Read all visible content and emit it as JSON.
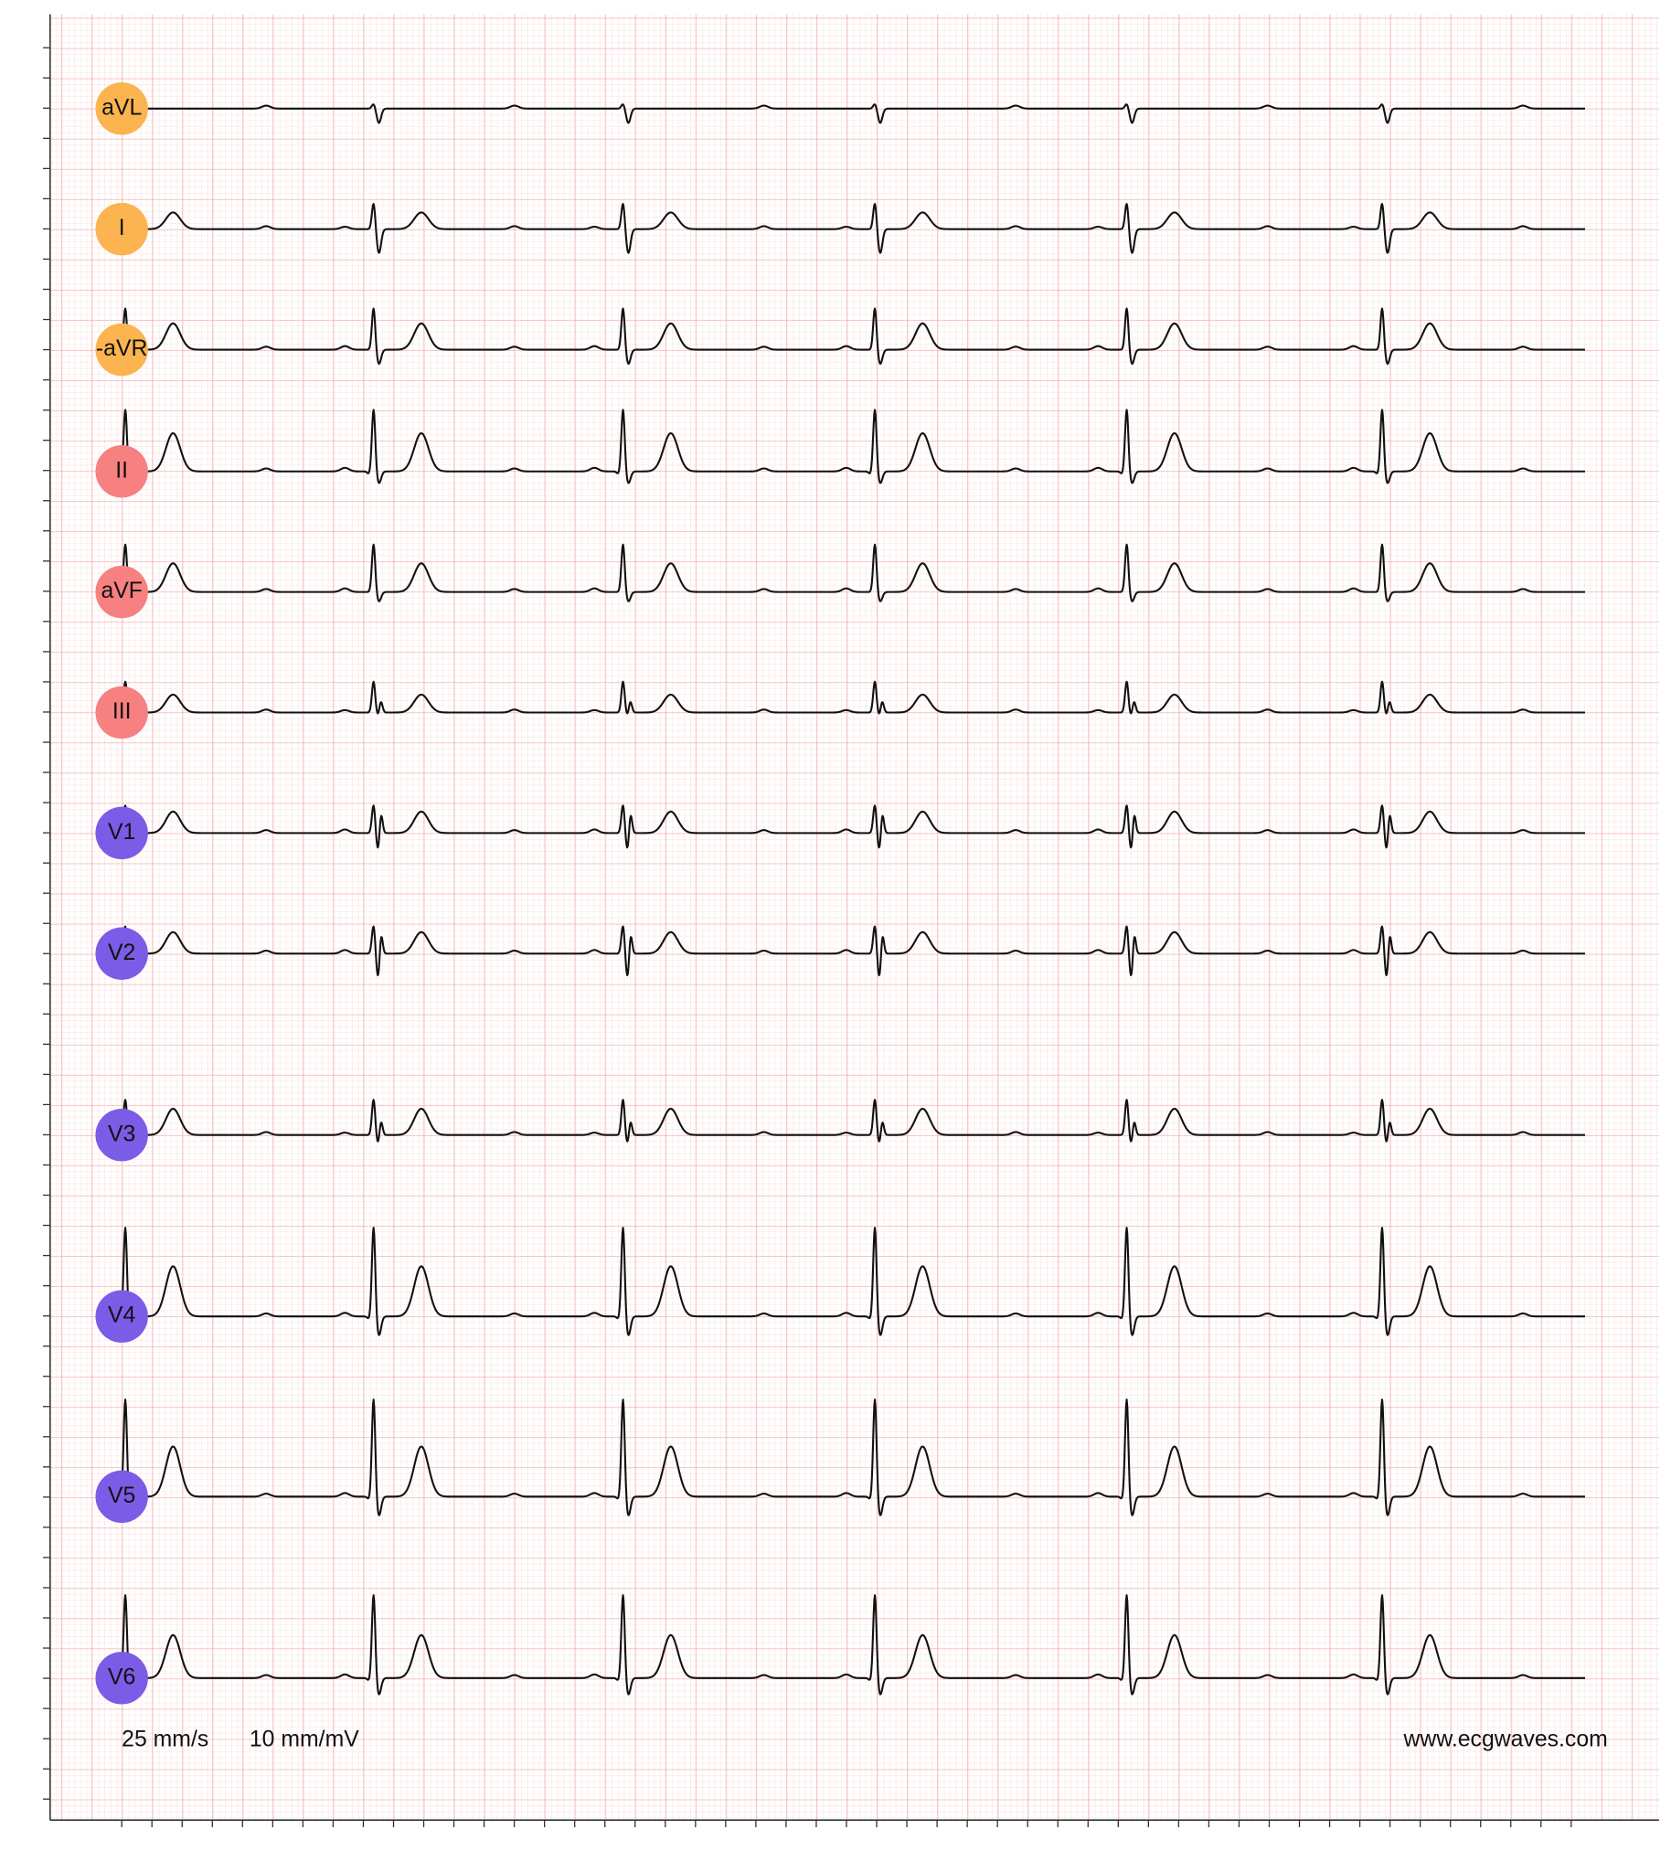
{
  "leads": [
    "aVL",
    "I",
    "-aVR",
    "II",
    "aVF",
    "III",
    "V1",
    "V2",
    "V3",
    "V4",
    "V5",
    "V6"
  ],
  "footer": {
    "speed": "25 mm/s",
    "gain": "10 mm/mV",
    "source": "www.ecgwaves.com"
  }
}
